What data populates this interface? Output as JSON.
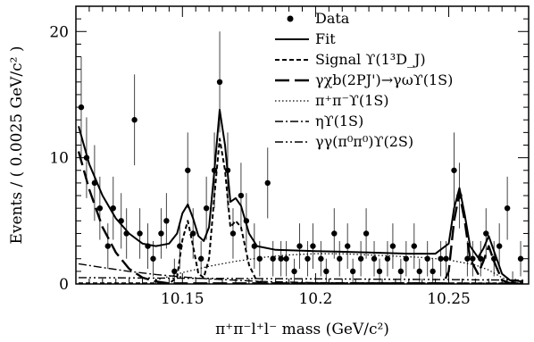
{
  "chart_data": {
    "type": "scatter",
    "title": "",
    "xlabel": "π⁺π⁻l⁺l⁻ mass (GeV/c²)",
    "ylabel": "Events / ( 0.0025 GeV/c² )",
    "xlim": [
      10.11,
      10.28
    ],
    "ylim": [
      0,
      22
    ],
    "x_ticks": [
      10.15,
      10.2,
      10.25
    ],
    "x_tick_labels": [
      "10.15",
      "10.2",
      "10.25"
    ],
    "y_ticks": [
      0,
      10,
      20
    ],
    "y_tick_labels": [
      "0",
      "10",
      "20"
    ],
    "legend_position": "top-right",
    "legend": [
      {
        "label": "Data",
        "style": "marker"
      },
      {
        "label": "Fit",
        "style": "solid"
      },
      {
        "label": "Signal ϒ(1³D_J)",
        "style": "short-dash"
      },
      {
        "label": "γχb(2PJ')→γωϒ(1S)",
        "style": "long-dash"
      },
      {
        "label": "π⁺π⁻ϒ(1S)",
        "style": "dotted"
      },
      {
        "label": "ηϒ(1S)",
        "style": "dash-dot"
      },
      {
        "label": "γγ(π⁰π⁰)ϒ(2S)",
        "style": "dash-dot-dot"
      }
    ],
    "series": [
      {
        "name": "Data",
        "type": "scatter",
        "points": [
          {
            "x": 10.112,
            "y": 14,
            "err": 4
          },
          {
            "x": 10.114,
            "y": 10,
            "err": 3.2
          },
          {
            "x": 10.117,
            "y": 8,
            "err": 3
          },
          {
            "x": 10.119,
            "y": 6,
            "err": 2.5
          },
          {
            "x": 10.122,
            "y": 3,
            "err": 1.8
          },
          {
            "x": 10.124,
            "y": 6,
            "err": 2.5
          },
          {
            "x": 10.127,
            "y": 5,
            "err": 2.2
          },
          {
            "x": 10.129,
            "y": 4,
            "err": 2
          },
          {
            "x": 10.132,
            "y": 13,
            "err": 3.6
          },
          {
            "x": 10.134,
            "y": 4,
            "err": 2
          },
          {
            "x": 10.137,
            "y": 3,
            "err": 1.8
          },
          {
            "x": 10.139,
            "y": 2,
            "err": 1.4
          },
          {
            "x": 10.142,
            "y": 4,
            "err": 2
          },
          {
            "x": 10.144,
            "y": 5,
            "err": 2.2
          },
          {
            "x": 10.147,
            "y": 1,
            "err": 1
          },
          {
            "x": 10.149,
            "y": 3,
            "err": 1.8
          },
          {
            "x": 10.152,
            "y": 9,
            "err": 3
          },
          {
            "x": 10.154,
            "y": 4,
            "err": 2
          },
          {
            "x": 10.157,
            "y": 2,
            "err": 1.4
          },
          {
            "x": 10.159,
            "y": 6,
            "err": 2.5
          },
          {
            "x": 10.162,
            "y": 9,
            "err": 3
          },
          {
            "x": 10.164,
            "y": 16,
            "err": 4
          },
          {
            "x": 10.167,
            "y": 9,
            "err": 3
          },
          {
            "x": 10.169,
            "y": 4,
            "err": 2
          },
          {
            "x": 10.172,
            "y": 7,
            "err": 2.6
          },
          {
            "x": 10.174,
            "y": 5,
            "err": 2.2
          },
          {
            "x": 10.177,
            "y": 3,
            "err": 1.8
          },
          {
            "x": 10.179,
            "y": 2,
            "err": 1.4
          },
          {
            "x": 10.182,
            "y": 8,
            "err": 2.8
          },
          {
            "x": 10.184,
            "y": 2,
            "err": 1.4
          },
          {
            "x": 10.187,
            "y": 2,
            "err": 1.4
          },
          {
            "x": 10.189,
            "y": 2,
            "err": 1.4
          },
          {
            "x": 10.192,
            "y": 1,
            "err": 1
          },
          {
            "x": 10.194,
            "y": 3,
            "err": 1.8
          },
          {
            "x": 10.197,
            "y": 2,
            "err": 1.4
          },
          {
            "x": 10.199,
            "y": 3,
            "err": 1.8
          },
          {
            "x": 10.202,
            "y": 2,
            "err": 1.4
          },
          {
            "x": 10.204,
            "y": 1,
            "err": 1
          },
          {
            "x": 10.207,
            "y": 4,
            "err": 2
          },
          {
            "x": 10.209,
            "y": 2,
            "err": 1.4
          },
          {
            "x": 10.212,
            "y": 3,
            "err": 1.8
          },
          {
            "x": 10.214,
            "y": 1,
            "err": 1
          },
          {
            "x": 10.217,
            "y": 2,
            "err": 1.4
          },
          {
            "x": 10.219,
            "y": 4,
            "err": 2
          },
          {
            "x": 10.222,
            "y": 2,
            "err": 1.4
          },
          {
            "x": 10.224,
            "y": 1,
            "err": 1
          },
          {
            "x": 10.227,
            "y": 2,
            "err": 1.4
          },
          {
            "x": 10.229,
            "y": 3,
            "err": 1.8
          },
          {
            "x": 10.232,
            "y": 1,
            "err": 1
          },
          {
            "x": 10.234,
            "y": 2,
            "err": 1.4
          },
          {
            "x": 10.237,
            "y": 3,
            "err": 1.8
          },
          {
            "x": 10.239,
            "y": 1,
            "err": 1
          },
          {
            "x": 10.242,
            "y": 2,
            "err": 1.4
          },
          {
            "x": 10.244,
            "y": 1,
            "err": 1
          },
          {
            "x": 10.247,
            "y": 2,
            "err": 1.4
          },
          {
            "x": 10.249,
            "y": 2,
            "err": 1.4
          },
          {
            "x": 10.252,
            "y": 9,
            "err": 3
          },
          {
            "x": 10.254,
            "y": 7,
            "err": 2.6
          },
          {
            "x": 10.257,
            "y": 2,
            "err": 1.4
          },
          {
            "x": 10.259,
            "y": 2,
            "err": 1.4
          },
          {
            "x": 10.262,
            "y": 2,
            "err": 1.4
          },
          {
            "x": 10.264,
            "y": 4,
            "err": 2
          },
          {
            "x": 10.267,
            "y": 2,
            "err": 1.4
          },
          {
            "x": 10.269,
            "y": 3,
            "err": 1.8
          },
          {
            "x": 10.272,
            "y": 6,
            "err": 2.5
          },
          {
            "x": 10.274,
            "y": 0,
            "err": 1
          },
          {
            "x": 10.277,
            "y": 2,
            "err": 1.4
          }
        ]
      },
      {
        "name": "Fit",
        "type": "line",
        "style": "solid",
        "points": [
          [
            10.111,
            12.5
          ],
          [
            10.115,
            9.5
          ],
          [
            10.12,
            7
          ],
          [
            10.125,
            5.2
          ],
          [
            10.13,
            4
          ],
          [
            10.135,
            3.2
          ],
          [
            10.14,
            3.0
          ],
          [
            10.145,
            3.2
          ],
          [
            10.148,
            4.0
          ],
          [
            10.15,
            5.6
          ],
          [
            10.152,
            6.3
          ],
          [
            10.154,
            5.2
          ],
          [
            10.156,
            3.8
          ],
          [
            10.158,
            3.4
          ],
          [
            10.16,
            4.5
          ],
          [
            10.162,
            9
          ],
          [
            10.164,
            13.8
          ],
          [
            10.166,
            11
          ],
          [
            10.168,
            6.5
          ],
          [
            10.17,
            6.8
          ],
          [
            10.172,
            6.2
          ],
          [
            10.175,
            4
          ],
          [
            10.178,
            3.0
          ],
          [
            10.185,
            2.7
          ],
          [
            10.2,
            2.6
          ],
          [
            10.22,
            2.5
          ],
          [
            10.235,
            2.4
          ],
          [
            10.245,
            2.4
          ],
          [
            10.25,
            3.2
          ],
          [
            10.252,
            6
          ],
          [
            10.254,
            7.6
          ],
          [
            10.256,
            5.5
          ],
          [
            10.258,
            3
          ],
          [
            10.261,
            2.1
          ],
          [
            10.263,
            2.8
          ],
          [
            10.265,
            3.8
          ],
          [
            10.267,
            2.6
          ],
          [
            10.27,
            0.8
          ],
          [
            10.273,
            0.3
          ],
          [
            10.278,
            0.2
          ]
        ]
      },
      {
        "name": "Signal ϒ(1³D_J)",
        "type": "line",
        "style": "short-dash",
        "points": [
          [
            10.111,
            0.05
          ],
          [
            10.145,
            0.05
          ],
          [
            10.148,
            0.5
          ],
          [
            10.15,
            3.5
          ],
          [
            10.152,
            5
          ],
          [
            10.154,
            3
          ],
          [
            10.156,
            0.8
          ],
          [
            10.158,
            0.5
          ],
          [
            10.16,
            2
          ],
          [
            10.162,
            7
          ],
          [
            10.164,
            11.5
          ],
          [
            10.166,
            9
          ],
          [
            10.168,
            4.5
          ],
          [
            10.17,
            5
          ],
          [
            10.172,
            4.5
          ],
          [
            10.175,
            1.5
          ],
          [
            10.178,
            0.2
          ],
          [
            10.182,
            0.05
          ],
          [
            10.278,
            0.05
          ]
        ]
      },
      {
        "name": "γχb(2PJ')→γωϒ(1S)",
        "type": "line",
        "style": "long-dash",
        "points": [
          [
            10.111,
            10.5
          ],
          [
            10.115,
            7.5
          ],
          [
            10.12,
            4.5
          ],
          [
            10.125,
            2.5
          ],
          [
            10.13,
            1.2
          ],
          [
            10.135,
            0.5
          ],
          [
            10.14,
            0.2
          ],
          [
            10.145,
            0.05
          ],
          [
            10.248,
            0.05
          ],
          [
            10.25,
            1
          ],
          [
            10.252,
            5
          ],
          [
            10.254,
            7.2
          ],
          [
            10.256,
            5
          ],
          [
            10.258,
            2
          ],
          [
            10.261,
            0.8
          ],
          [
            10.263,
            1.8
          ],
          [
            10.265,
            3
          ],
          [
            10.267,
            1.8
          ],
          [
            10.27,
            0.3
          ],
          [
            10.273,
            0.05
          ],
          [
            10.278,
            0.05
          ]
        ]
      },
      {
        "name": "π⁺π⁻ϒ(1S)",
        "type": "line",
        "style": "dotted",
        "points": [
          [
            10.14,
            0.3
          ],
          [
            10.15,
            0.9
          ],
          [
            10.16,
            1.4
          ],
          [
            10.17,
            1.8
          ],
          [
            10.18,
            2.1
          ],
          [
            10.19,
            2.3
          ],
          [
            10.2,
            2.4
          ],
          [
            10.21,
            2.4
          ],
          [
            10.22,
            2.3
          ],
          [
            10.23,
            2.2
          ],
          [
            10.24,
            2.1
          ],
          [
            10.25,
            1.9
          ],
          [
            10.26,
            1.5
          ],
          [
            10.265,
            1.1
          ],
          [
            10.27,
            0.5
          ],
          [
            10.275,
            0.1
          ]
        ]
      },
      {
        "name": "ηϒ(1S)",
        "type": "line",
        "style": "dash-dot",
        "points": [
          [
            10.111,
            1.6
          ],
          [
            10.12,
            1.3
          ],
          [
            10.13,
            1.0
          ],
          [
            10.14,
            0.75
          ],
          [
            10.15,
            0.55
          ],
          [
            10.16,
            0.4
          ],
          [
            10.17,
            0.3
          ],
          [
            10.18,
            0.2
          ],
          [
            10.19,
            0.15
          ],
          [
            10.2,
            0.1
          ],
          [
            10.278,
            0.05
          ]
        ]
      },
      {
        "name": "γγ(π⁰π⁰)ϒ(2S)",
        "type": "line",
        "style": "dash-dot-dot",
        "points": [
          [
            10.111,
            0.5
          ],
          [
            10.13,
            0.48
          ],
          [
            10.15,
            0.45
          ],
          [
            10.2,
            0.4
          ],
          [
            10.25,
            0.35
          ],
          [
            10.278,
            0.3
          ]
        ]
      }
    ]
  }
}
